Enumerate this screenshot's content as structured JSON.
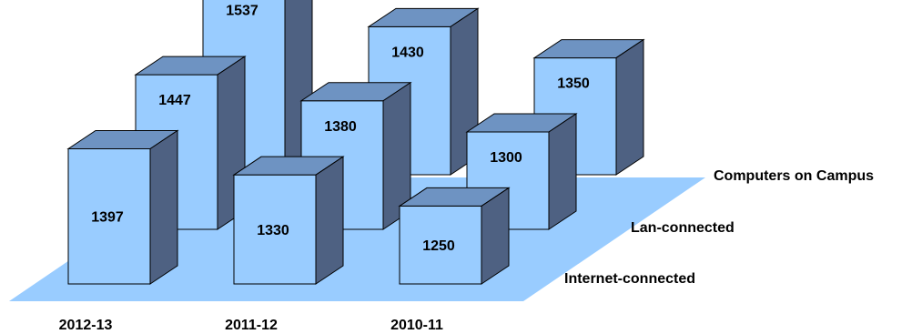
{
  "chart_data": {
    "type": "bar",
    "categories": [
      "2012-13",
      "2011-12",
      "2010-11"
    ],
    "series": [
      {
        "name": "Internet-connected",
        "values": [
          1397,
          1330,
          1250
        ]
      },
      {
        "name": "Lan-connected",
        "values": [
          1447,
          1380,
          1300
        ]
      },
      {
        "name": "Computers on Campus",
        "values": [
          1537,
          1430,
          1350
        ]
      }
    ],
    "title": "",
    "xlabel": "",
    "ylabel": "",
    "grid": false,
    "legend": "none",
    "colors": {
      "front": "#99ccff",
      "top": "#6e93c2",
      "side": "#4e6182",
      "floor": "#99ccff"
    }
  }
}
